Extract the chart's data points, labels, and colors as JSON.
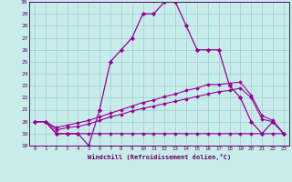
{
  "xlabel": "Windchill (Refroidissement éolien,°C)",
  "x": [
    0,
    1,
    2,
    3,
    4,
    5,
    6,
    7,
    8,
    9,
    10,
    11,
    12,
    13,
    14,
    15,
    16,
    17,
    18,
    19,
    20,
    21,
    22,
    23
  ],
  "line1": [
    20,
    20,
    19,
    19,
    19,
    18,
    21,
    25,
    26,
    27,
    29,
    29,
    30,
    30,
    28,
    26,
    26,
    26,
    23,
    22,
    20,
    19,
    20,
    19
  ],
  "line2": [
    20,
    20,
    19,
    19,
    19,
    19,
    19,
    19,
    19,
    19,
    19,
    19,
    19,
    19,
    19,
    19,
    19,
    19,
    19,
    19,
    19,
    19,
    19,
    19
  ],
  "line3": [
    20,
    20,
    19.3,
    19.5,
    19.6,
    19.8,
    20.1,
    20.4,
    20.6,
    20.9,
    21.1,
    21.3,
    21.5,
    21.7,
    21.9,
    22.1,
    22.3,
    22.5,
    22.6,
    22.8,
    22.0,
    20.2,
    20.0,
    19.0
  ],
  "line4": [
    20,
    20,
    19.5,
    19.7,
    19.9,
    20.1,
    20.4,
    20.7,
    21.0,
    21.3,
    21.6,
    21.8,
    22.1,
    22.3,
    22.6,
    22.8,
    23.1,
    23.1,
    23.2,
    23.3,
    22.2,
    20.5,
    20.1,
    19.0
  ],
  "bg_color": "#c8ecea",
  "line_color": "#990099",
  "grid_color": "#9ccece",
  "label_color": "#660066",
  "ylim": [
    18,
    30
  ],
  "xlim": [
    -0.5,
    23.5
  ],
  "yticks": [
    18,
    19,
    20,
    21,
    22,
    23,
    24,
    25,
    26,
    27,
    28,
    29,
    30
  ],
  "xticks": [
    0,
    1,
    2,
    3,
    4,
    5,
    6,
    7,
    8,
    9,
    10,
    11,
    12,
    13,
    14,
    15,
    16,
    17,
    18,
    19,
    20,
    21,
    22,
    23
  ]
}
